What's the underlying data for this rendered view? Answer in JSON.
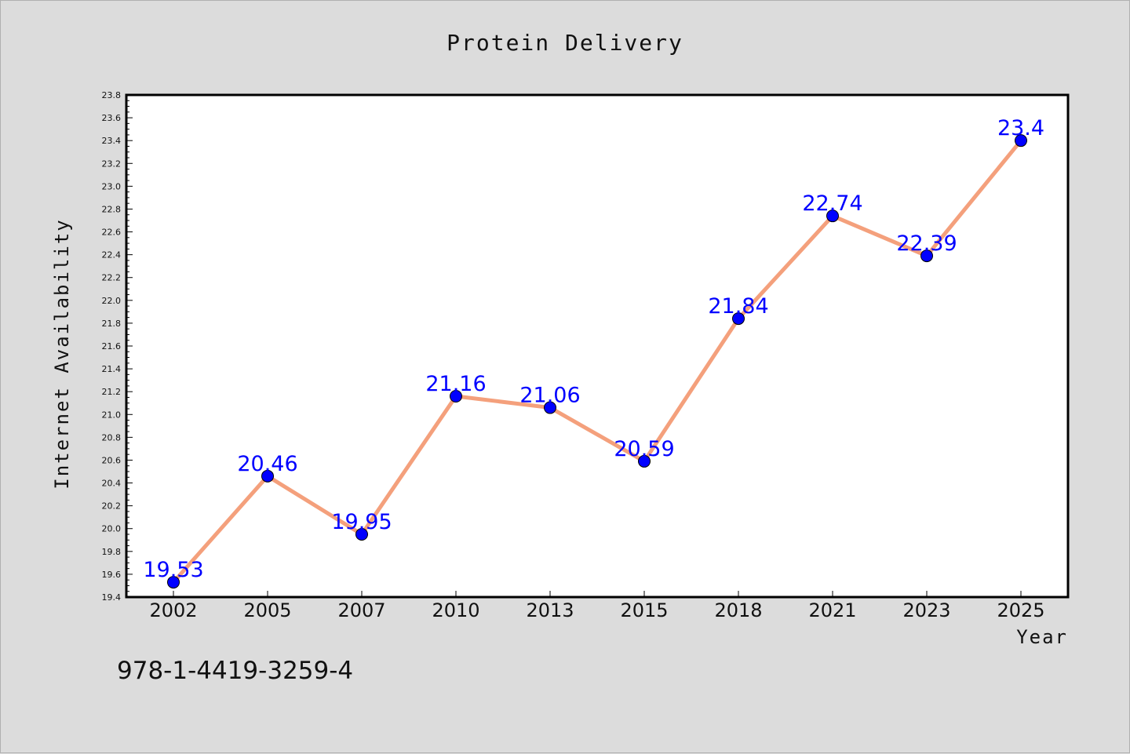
{
  "chart_data": {
    "type": "line",
    "title": "Protein Delivery",
    "xlabel": "Year",
    "ylabel": "Internet Availability",
    "categories": [
      "2002",
      "2005",
      "2007",
      "2010",
      "2013",
      "2015",
      "2018",
      "2021",
      "2023",
      "2025"
    ],
    "series": [
      {
        "values": [
          19.53,
          20.46,
          19.95,
          21.16,
          21.06,
          20.59,
          21.84,
          22.74,
          22.39,
          23.4
        ],
        "labels": [
          "19.53",
          "20.46",
          "19.95",
          "21.16",
          "21.06",
          "20.59",
          "21.84",
          "22.74",
          "22.39",
          "23.4"
        ]
      }
    ],
    "ylim": [
      19.4,
      23.8
    ],
    "yticks": [
      "19.4",
      "19.6",
      "19.8",
      "20.0",
      "20.2",
      "20.4",
      "20.6",
      "20.8",
      "21.0",
      "21.2",
      "21.4",
      "21.6",
      "21.8",
      "22.0",
      "22.2",
      "22.4",
      "22.6",
      "22.8",
      "23.0",
      "23.2",
      "23.4",
      "23.6",
      "23.8"
    ],
    "grid": false,
    "legend": "none",
    "colors": {
      "line": "#f4a07c",
      "marker": "#0000ff",
      "data_label": "#0000ff",
      "background": "#dcdcdc",
      "plot_area": "#ffffff"
    }
  },
  "footer": {
    "isbn": "978-1-4419-3259-4"
  }
}
